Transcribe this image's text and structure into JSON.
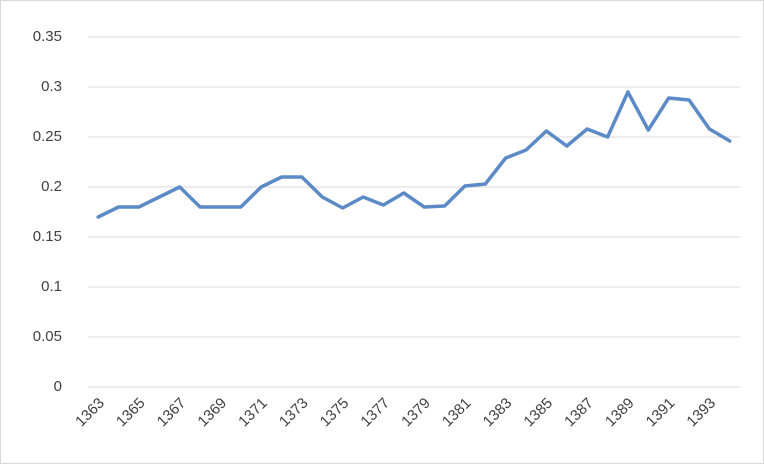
{
  "chart_data": {
    "type": "line",
    "categories": [
      "1363",
      null,
      "1365",
      null,
      "1367",
      null,
      "1369",
      null,
      "1371",
      null,
      "1373",
      null,
      "1375",
      null,
      "1377",
      null,
      "1379",
      null,
      "1381",
      null,
      "1383",
      null,
      "1385",
      null,
      "1387",
      null,
      "1389",
      null,
      "1391",
      null,
      "1393",
      null
    ],
    "series": [
      {
        "color": "#5b8ac6",
        "values": [
          0.17,
          0.18,
          0.18,
          0.19,
          0.2,
          0.18,
          0.18,
          0.18,
          0.2,
          0.21,
          0.21,
          0.19,
          0.179,
          0.19,
          0.182,
          0.194,
          0.18,
          0.181,
          0.201,
          0.203,
          0.229,
          0.237,
          0.256,
          0.241,
          0.258,
          0.25,
          0.295,
          0.257,
          0.289,
          0.287,
          0.258,
          0.246
        ]
      }
    ],
    "ylim": [
      0,
      0.35
    ],
    "yticks": [
      0,
      0.05,
      0.1,
      0.15,
      0.2,
      0.25,
      0.3,
      0.35
    ],
    "grid": true
  }
}
